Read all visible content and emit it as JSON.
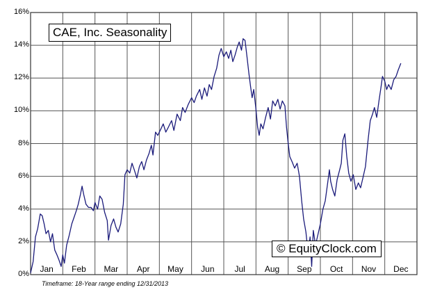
{
  "chart_data": {
    "type": "line",
    "title": "CAE, Inc. Seasonality",
    "xlabel": "",
    "ylabel": "",
    "ylim": [
      0,
      16
    ],
    "yticks": [
      "0%",
      "2%",
      "4%",
      "6%",
      "8%",
      "10%",
      "12%",
      "14%",
      "16%"
    ],
    "ytick_values": [
      0,
      2,
      4,
      6,
      8,
      10,
      12,
      14,
      16
    ],
    "months": [
      "Jan",
      "Feb",
      "Mar",
      "Apr",
      "May",
      "Jun",
      "Jul",
      "Aug",
      "Sep",
      "Oct",
      "Nov",
      "Dec"
    ],
    "x_unit": "month (0 = start of Jan, 12 = end of Dec)",
    "grid": true,
    "series": [
      {
        "name": "CAE, Inc. Seasonality",
        "color": "#1a1a7a",
        "points": [
          [
            0.0,
            0.1
          ],
          [
            0.08,
            0.8
          ],
          [
            0.15,
            2.3
          ],
          [
            0.22,
            2.8
          ],
          [
            0.3,
            3.7
          ],
          [
            0.36,
            3.6
          ],
          [
            0.42,
            3.1
          ],
          [
            0.48,
            2.5
          ],
          [
            0.55,
            2.7
          ],
          [
            0.62,
            2.0
          ],
          [
            0.68,
            2.5
          ],
          [
            0.75,
            1.5
          ],
          [
            0.82,
            1.2
          ],
          [
            0.88,
            0.9
          ],
          [
            0.95,
            0.5
          ],
          [
            1.0,
            1.2
          ],
          [
            1.05,
            0.7
          ],
          [
            1.12,
            1.8
          ],
          [
            1.2,
            2.4
          ],
          [
            1.28,
            3.1
          ],
          [
            1.35,
            3.5
          ],
          [
            1.42,
            3.9
          ],
          [
            1.48,
            4.3
          ],
          [
            1.55,
            4.9
          ],
          [
            1.6,
            5.4
          ],
          [
            1.65,
            4.9
          ],
          [
            1.72,
            4.3
          ],
          [
            1.8,
            4.1
          ],
          [
            1.88,
            4.1
          ],
          [
            1.95,
            3.9
          ],
          [
            2.0,
            4.4
          ],
          [
            2.08,
            4.0
          ],
          [
            2.15,
            4.8
          ],
          [
            2.22,
            4.6
          ],
          [
            2.3,
            3.8
          ],
          [
            2.38,
            3.3
          ],
          [
            2.42,
            2.1
          ],
          [
            2.5,
            3.0
          ],
          [
            2.58,
            3.4
          ],
          [
            2.65,
            2.9
          ],
          [
            2.72,
            2.6
          ],
          [
            2.8,
            3.1
          ],
          [
            2.88,
            4.3
          ],
          [
            2.93,
            6.1
          ],
          [
            3.0,
            6.4
          ],
          [
            3.08,
            6.2
          ],
          [
            3.15,
            6.8
          ],
          [
            3.22,
            6.4
          ],
          [
            3.3,
            5.9
          ],
          [
            3.38,
            6.6
          ],
          [
            3.45,
            6.9
          ],
          [
            3.52,
            6.4
          ],
          [
            3.6,
            7.0
          ],
          [
            3.68,
            7.4
          ],
          [
            3.75,
            7.9
          ],
          [
            3.8,
            7.3
          ],
          [
            3.88,
            8.7
          ],
          [
            3.95,
            8.5
          ],
          [
            4.05,
            8.9
          ],
          [
            4.12,
            9.2
          ],
          [
            4.2,
            8.7
          ],
          [
            4.28,
            9.0
          ],
          [
            4.38,
            9.4
          ],
          [
            4.45,
            8.8
          ],
          [
            4.55,
            9.8
          ],
          [
            4.65,
            9.4
          ],
          [
            4.72,
            10.2
          ],
          [
            4.8,
            9.9
          ],
          [
            4.9,
            10.4
          ],
          [
            5.0,
            10.8
          ],
          [
            5.08,
            10.5
          ],
          [
            5.15,
            10.9
          ],
          [
            5.25,
            11.3
          ],
          [
            5.32,
            10.7
          ],
          [
            5.4,
            11.4
          ],
          [
            5.48,
            10.9
          ],
          [
            5.55,
            11.6
          ],
          [
            5.62,
            11.3
          ],
          [
            5.7,
            12.1
          ],
          [
            5.78,
            12.6
          ],
          [
            5.85,
            13.4
          ],
          [
            5.92,
            13.8
          ],
          [
            6.0,
            13.3
          ],
          [
            6.08,
            13.6
          ],
          [
            6.15,
            13.2
          ],
          [
            6.22,
            13.7
          ],
          [
            6.28,
            13.0
          ],
          [
            6.35,
            13.4
          ],
          [
            6.42,
            13.9
          ],
          [
            6.48,
            14.2
          ],
          [
            6.55,
            13.7
          ],
          [
            6.6,
            14.4
          ],
          [
            6.66,
            14.3
          ],
          [
            6.72,
            13.3
          ],
          [
            6.78,
            12.3
          ],
          [
            6.83,
            11.5
          ],
          [
            6.88,
            10.8
          ],
          [
            6.93,
            11.3
          ],
          [
            7.0,
            10.1
          ],
          [
            7.05,
            9.0
          ],
          [
            7.1,
            8.5
          ],
          [
            7.15,
            9.2
          ],
          [
            7.22,
            8.9
          ],
          [
            7.3,
            9.6
          ],
          [
            7.38,
            10.2
          ],
          [
            7.45,
            9.5
          ],
          [
            7.52,
            10.6
          ],
          [
            7.6,
            10.3
          ],
          [
            7.68,
            10.7
          ],
          [
            7.75,
            10.1
          ],
          [
            7.82,
            10.6
          ],
          [
            7.9,
            10.3
          ],
          [
            7.95,
            9.0
          ],
          [
            8.0,
            8.0
          ],
          [
            8.05,
            7.2
          ],
          [
            8.12,
            6.9
          ],
          [
            8.2,
            6.5
          ],
          [
            8.28,
            6.8
          ],
          [
            8.35,
            6.0
          ],
          [
            8.42,
            4.5
          ],
          [
            8.48,
            3.4
          ],
          [
            8.55,
            2.6
          ],
          [
            8.62,
            1.3
          ],
          [
            8.68,
            2.3
          ],
          [
            8.73,
            0.5
          ],
          [
            8.78,
            2.7
          ],
          [
            8.85,
            1.8
          ],
          [
            8.92,
            2.4
          ],
          [
            9.0,
            3.1
          ],
          [
            9.08,
            4.0
          ],
          [
            9.15,
            4.5
          ],
          [
            9.22,
            5.5
          ],
          [
            9.28,
            6.4
          ],
          [
            9.32,
            5.7
          ],
          [
            9.38,
            5.2
          ],
          [
            9.45,
            4.8
          ],
          [
            9.52,
            5.8
          ],
          [
            9.6,
            6.4
          ],
          [
            9.65,
            6.8
          ],
          [
            9.7,
            8.2
          ],
          [
            9.76,
            8.6
          ],
          [
            9.82,
            7.2
          ],
          [
            9.88,
            6.2
          ],
          [
            9.95,
            5.7
          ],
          [
            10.02,
            6.1
          ],
          [
            10.1,
            5.2
          ],
          [
            10.18,
            5.6
          ],
          [
            10.25,
            5.3
          ],
          [
            10.32,
            5.9
          ],
          [
            10.4,
            6.6
          ],
          [
            10.48,
            8.2
          ],
          [
            10.55,
            9.4
          ],
          [
            10.62,
            9.8
          ],
          [
            10.68,
            10.2
          ],
          [
            10.75,
            9.6
          ],
          [
            10.82,
            10.6
          ],
          [
            10.88,
            11.4
          ],
          [
            10.93,
            12.1
          ],
          [
            11.0,
            11.8
          ],
          [
            11.06,
            11.3
          ],
          [
            11.12,
            11.6
          ],
          [
            11.2,
            11.3
          ],
          [
            11.28,
            11.9
          ],
          [
            11.35,
            12.1
          ],
          [
            11.42,
            12.5
          ],
          [
            11.5,
            12.9
          ]
        ]
      }
    ],
    "legend": "none",
    "watermark": "© EquityClock.com",
    "footnote": "Timeframe: 18-Year range ending 12/31/2013"
  }
}
